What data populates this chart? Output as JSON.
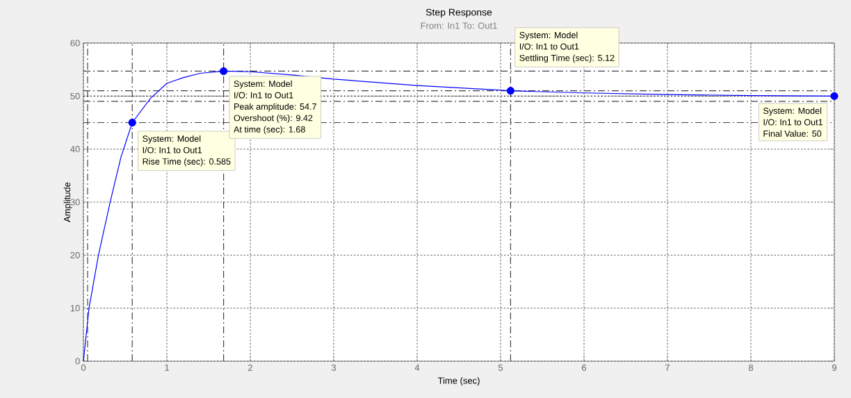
{
  "chart_data": {
    "type": "line",
    "title": "Step Response",
    "subtitle": "From: In1  To: Out1",
    "xlabel": "Time (sec)",
    "ylabel": "Amplitude",
    "series": [
      {
        "color": "#0000ff",
        "marker": "none",
        "line_style": "solid",
        "x": [
          0,
          0.067,
          0.18,
          0.32,
          0.45,
          0.585,
          0.8,
          1,
          1.2,
          1.4,
          1.68,
          2,
          2.5,
          3,
          4,
          5.12,
          6,
          7,
          8,
          9
        ],
        "values": [
          0,
          10,
          20,
          30,
          38.5,
          45,
          49.5,
          52.4,
          53.5,
          54.3,
          54.7,
          54.6,
          54,
          53.2,
          52,
          51,
          50.6,
          50.3,
          50.1,
          50
        ]
      },
      {
        "type": "scatter",
        "color": "#0000ff",
        "marker": "circle",
        "x": [
          0.585,
          1.68,
          5.12,
          9
        ],
        "values": [
          45,
          54.7,
          51,
          50
        ]
      }
    ],
    "xlim": [
      0,
      9
    ],
    "ylim": [
      0,
      60
    ],
    "xticks": [
      0,
      1,
      2,
      3,
      4,
      5,
      6,
      7,
      8,
      9
    ],
    "yticks": [
      0,
      10,
      20,
      30,
      40,
      50,
      60
    ],
    "grid": true,
    "ref_lines": [
      {
        "axis": "y",
        "value": 54.7,
        "color": "#404040",
        "line_style": "dashdot"
      },
      {
        "axis": "y",
        "value": 45,
        "color": "#404040",
        "line_style": "dashdot"
      },
      {
        "axis": "y",
        "value": 51,
        "color": "#404040",
        "line_style": "dashdot"
      },
      {
        "axis": "y",
        "value": 49,
        "color": "#404040",
        "line_style": "dashdot"
      },
      {
        "axis": "y",
        "value": 50,
        "color": "#404040",
        "line_style": "dotted"
      },
      {
        "axis": "x",
        "value": 0.05,
        "color": "#404040",
        "line_style": "dashdot"
      },
      {
        "axis": "x",
        "value": 0.585,
        "color": "#404040",
        "line_style": "dashdot"
      },
      {
        "axis": "x",
        "value": 1.68,
        "color": "#404040",
        "line_style": "dashdot"
      },
      {
        "axis": "x",
        "value": 5.12,
        "color": "#404040",
        "line_style": "dashdot"
      }
    ],
    "annotations": [
      "System: Model",
      "I/O: In1 to Out1",
      "Rise Time (sec): 0.585",
      "System: Model",
      "I/O: In1 to Out1",
      "Peak amplitude: 54.7",
      "Overshoot (%): 9.42",
      "At time (sec): 1.68",
      "System: Model",
      "I/O: In1 to Out1",
      "Settling Time (sec): 5.12",
      "System: Model",
      "I/O: In1 to Out1",
      "Final Value: 50"
    ]
  }
}
